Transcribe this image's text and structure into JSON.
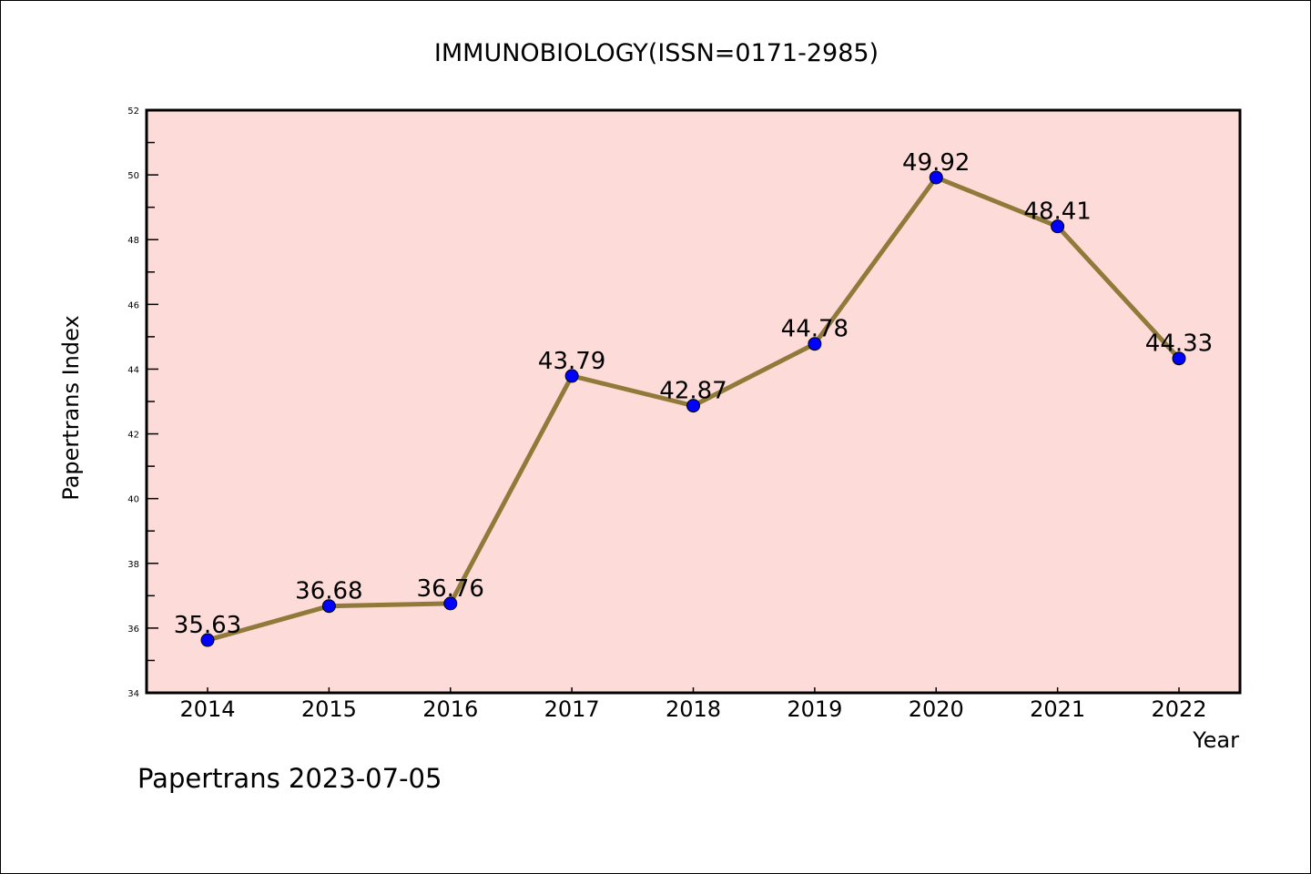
{
  "chart_data": {
    "type": "line",
    "title": "IMMUNOBIOLOGY(ISSN=0171-2985)",
    "xlabel": "Year",
    "ylabel": "Papertrans Index",
    "categories": [
      "2014",
      "2015",
      "2016",
      "2017",
      "2018",
      "2019",
      "2020",
      "2021",
      "2022"
    ],
    "series": [
      {
        "name": "Papertrans Index",
        "values": [
          35.63,
          36.68,
          36.76,
          43.79,
          42.87,
          44.78,
          49.92,
          48.41,
          44.33
        ]
      }
    ],
    "data_labels": [
      "35.63",
      "36.68",
      "36.76",
      "43.79",
      "42.87",
      "44.78",
      "49.92",
      "48.41",
      "44.33"
    ],
    "ylim": [
      34,
      52
    ],
    "yticks": [
      34,
      36,
      38,
      40,
      42,
      44,
      46,
      48,
      50,
      52
    ],
    "grid": false,
    "colors": {
      "line": "#8f7a3a",
      "marker": "#0000ff",
      "plot_bg": "#fddbd8"
    }
  },
  "footer": "Papertrans 2023-07-05"
}
